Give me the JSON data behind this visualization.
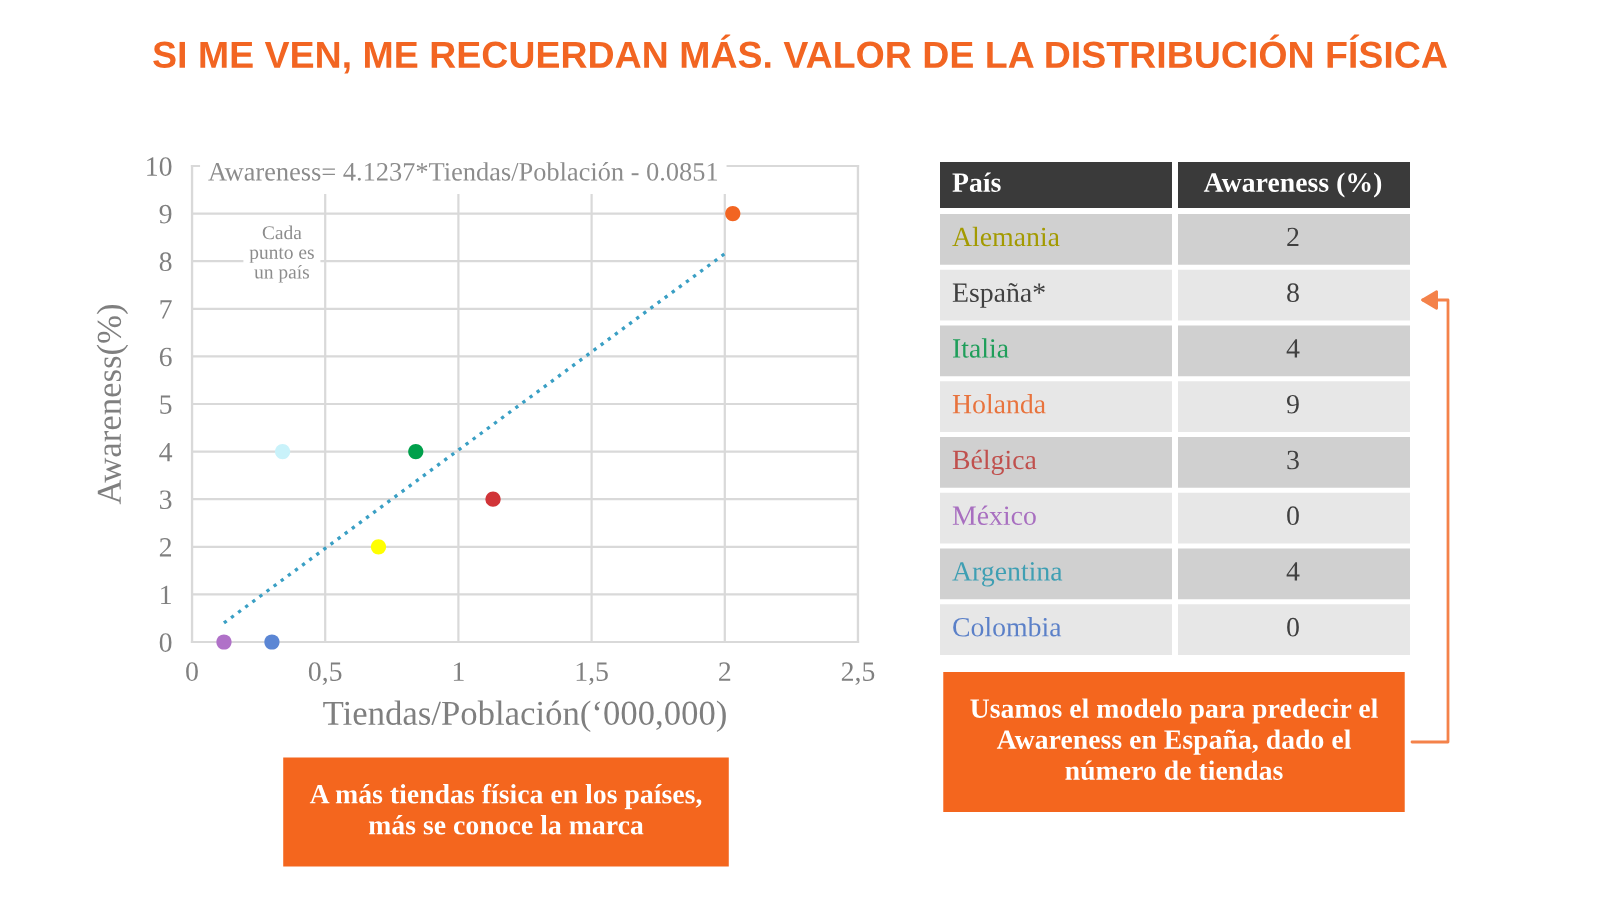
{
  "chart_data": [
    {
      "type": "scatter",
      "title": "SI ME VEN, ME RECUERDAN MÁS. VALOR DE LA DISTRIBUCIÓN FÍSICA",
      "xlabel": "Tiendas/Población(‘000,000)",
      "ylabel": "Awareness(%)",
      "series": [
        {
          "type": "scatter",
          "marker": "circle",
          "x": [
            0.7,
            0.84,
            2.03,
            1.13,
            0.12,
            0.34,
            0.3
          ],
          "values": [
            2,
            4,
            9,
            3,
            0,
            4,
            0
          ],
          "colors": [
            "#ffff00",
            "#00a04b",
            "#f26522",
            "#d13438",
            "#b071c8",
            "#c9f2fa",
            "#5b86d4"
          ]
        },
        {
          "type": "line",
          "line_style": "dotted",
          "x": [
            0.12,
            2.01
          ],
          "values": [
            0.4,
            8.2
          ],
          "color": "#3a9fc4"
        }
      ],
      "xlim": [
        0,
        2.5
      ],
      "xticks": [
        0,
        {
          "value": 0.5,
          "label": "0,5"
        },
        1,
        {
          "value": 1.5,
          "label": "1,5"
        },
        2,
        {
          "value": 2.5,
          "label": "2,5"
        }
      ],
      "ylim": [
        0,
        10
      ],
      "yticks": [
        0,
        1,
        2,
        3,
        4,
        5,
        6,
        7,
        8,
        9,
        10
      ],
      "grid": true,
      "annotations": [
        "Awareness= 4.1237*Tiendas/Población - 0.0851",
        "Cada\npunto es\nun país",
        "A más tiendas física en los países,\nmás se conoce la marca"
      ]
    },
    {
      "type": "other",
      "xlabel": "País",
      "ylabel": "Awareness (%)",
      "categories": [
        "Alemania",
        "España*",
        "Italia",
        "Holanda",
        "Bélgica",
        "México",
        "Argentina",
        "Colombia"
      ],
      "values": [
        2,
        8,
        4,
        9,
        3,
        0,
        4,
        0
      ],
      "data_labels": true,
      "annotations": [
        "Usamos el modelo para predecir el\nAwareness en España, dado el\nnúmero de tiendas"
      ]
    }
  ]
}
